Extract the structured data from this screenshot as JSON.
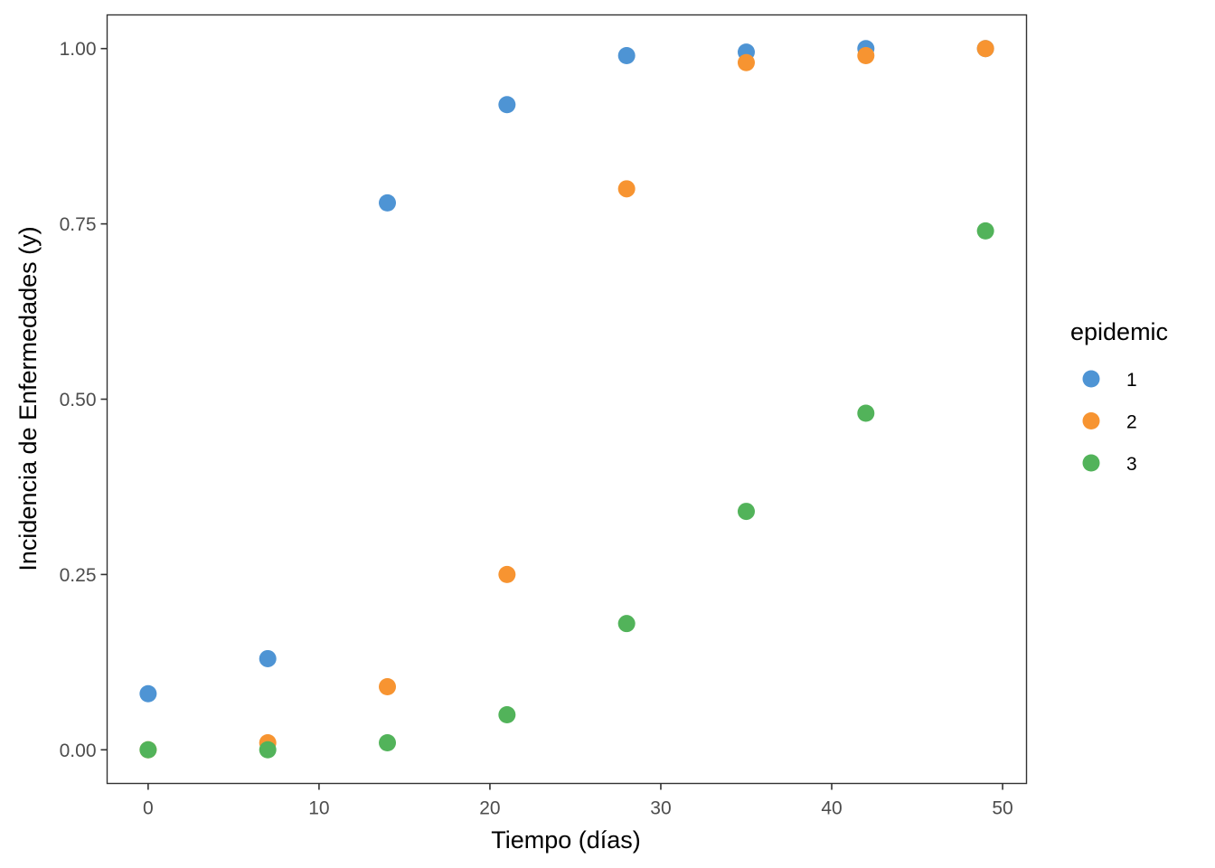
{
  "chart_data": {
    "type": "scatter",
    "title": "",
    "xlabel": "Tiempo (días)",
    "ylabel": "Incidencia de Enfermedades (y)",
    "xlim": [
      -2.4,
      51.4
    ],
    "ylim": [
      -0.048,
      1.048
    ],
    "x_ticks": [
      0,
      10,
      20,
      30,
      40,
      50
    ],
    "x_tick_labels": [
      "0",
      "10",
      "20",
      "30",
      "40",
      "50"
    ],
    "y_ticks": [
      0,
      0.25,
      0.5,
      0.75,
      1.0
    ],
    "y_tick_labels": [
      "0.00",
      "0.25",
      "0.50",
      "0.75",
      "1.00"
    ],
    "grid": false,
    "legend_position": "right",
    "legend_title": "epidemic",
    "x": [
      0,
      7,
      14,
      21,
      28,
      35,
      42,
      49
    ],
    "series": [
      {
        "name": "1",
        "color": "#4e94d4",
        "values": [
          0.08,
          0.13,
          0.78,
          0.92,
          0.99,
          0.995,
          1.0,
          1.0
        ]
      },
      {
        "name": "2",
        "color": "#f79431",
        "values": [
          0.0,
          0.01,
          0.09,
          0.25,
          0.8,
          0.98,
          0.99,
          1.0
        ]
      },
      {
        "name": "3",
        "color": "#52b35a",
        "values": [
          0.0,
          0.0,
          0.01,
          0.05,
          0.18,
          0.34,
          0.48,
          0.74
        ]
      }
    ]
  }
}
